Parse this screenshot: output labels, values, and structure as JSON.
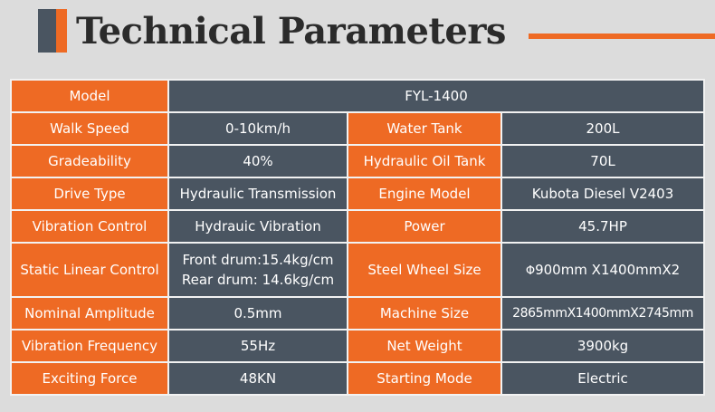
{
  "title": "Technical Parameters",
  "colors": {
    "accent": "#ee6a24",
    "slate": "#4a5561",
    "background": "#dcdcdc"
  },
  "model": {
    "label": "Model",
    "value": "FYL-1400"
  },
  "rows": [
    {
      "l1": "Walk Speed",
      "v1": "0-10km/h",
      "l2": "Water Tank",
      "v2": "200L"
    },
    {
      "l1": "Gradeability",
      "v1": "40%",
      "l2": "Hydraulic Oil Tank",
      "v2": "70L"
    },
    {
      "l1": "Drive Type",
      "v1": "Hydraulic Transmission",
      "l2": "Engine Model",
      "v2": "Kubota Diesel V2403"
    },
    {
      "l1": "Vibration Control",
      "v1": "Hydrauic Vibration",
      "l2": "Power",
      "v2": "45.7HP"
    },
    {
      "l1": "Static Linear Control",
      "v1a": "Front drum:15.4kg/cm",
      "v1b": "Rear drum: 14.6kg/cm",
      "l2": "Steel Wheel Size",
      "v2_symbol": "Φ",
      "v2": "900mm X1400mmX2"
    },
    {
      "l1": "Nominal Amplitude",
      "v1": "0.5mm",
      "l2": "Machine Size",
      "v2": "2865mmX1400mmX2745mm"
    },
    {
      "l1": "Vibration Frequency",
      "v1": "55Hz",
      "l2": "Net Weight",
      "v2": "3900kg"
    },
    {
      "l1": "Exciting Force",
      "v1": "48KN",
      "l2": "Starting Mode",
      "v2": "Electric"
    }
  ]
}
